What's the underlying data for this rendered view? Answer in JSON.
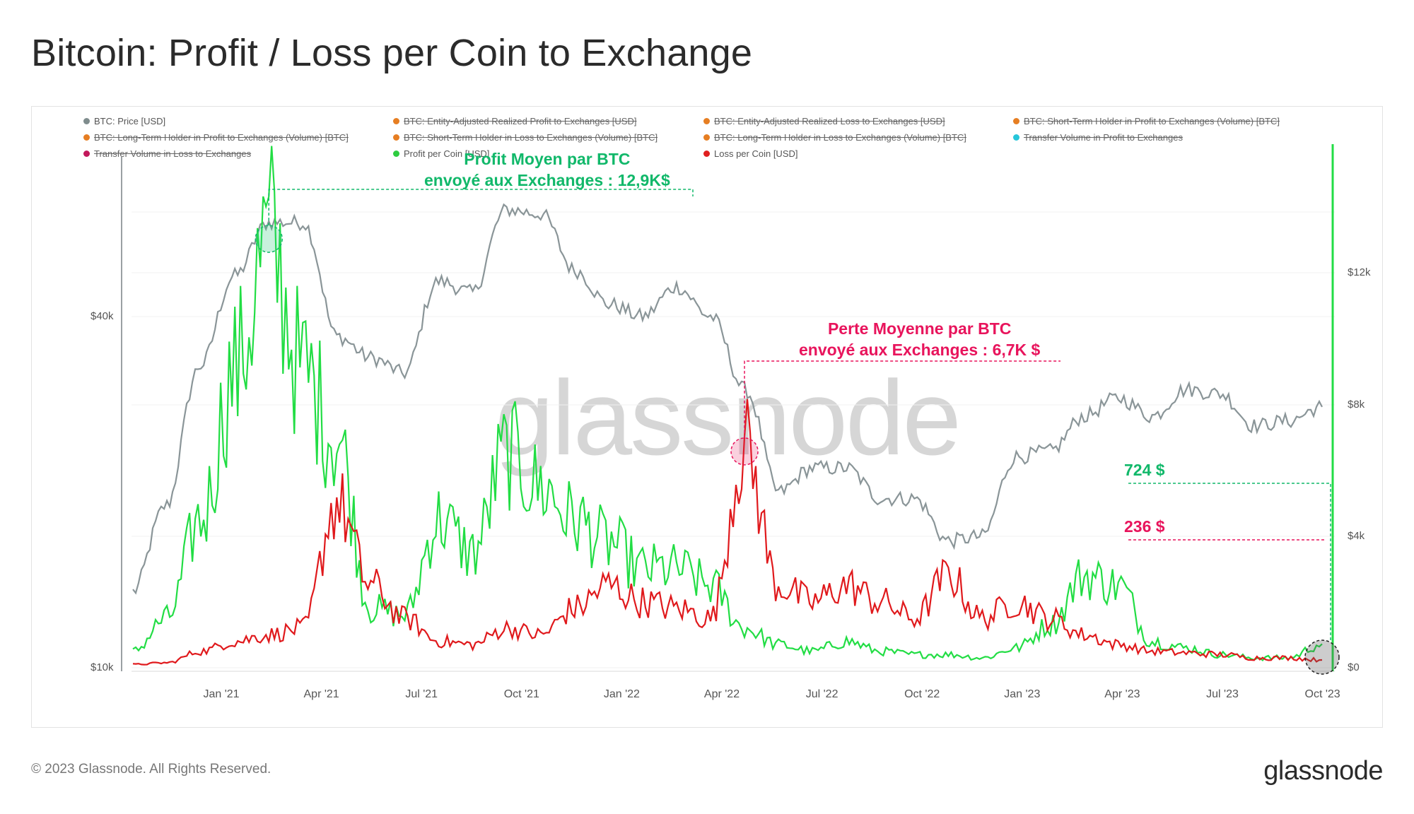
{
  "title": "Bitcoin: Profit / Loss per Coin to Exchange",
  "watermark": "glassnode",
  "footer": "© 2023 Glassnode. All Rights Reserved.",
  "brand": "glassnode",
  "legend": [
    {
      "label": "BTC: Price [USD]",
      "color": "#7f8c8d",
      "active": true
    },
    {
      "label": "BTC: Entity-Adjusted Realized Profit to Exchanges [USD]",
      "color": "#e67e22",
      "active": false
    },
    {
      "label": "BTC: Entity-Adjusted Realized Loss to Exchanges [USD]",
      "color": "#e67e22",
      "active": false
    },
    {
      "label": "BTC: Short-Term Holder in Profit to Exchanges (Volume) [BTC]",
      "color": "#e67e22",
      "active": false
    },
    {
      "label": "BTC: Long-Term Holder in Profit to Exchanges (Volume) [BTC]",
      "color": "#e67e22",
      "active": false
    },
    {
      "label": "BTC: Short-Term Holder in Loss to Exchanges (Volume) [BTC]",
      "color": "#e67e22",
      "active": false
    },
    {
      "label": "BTC: Long-Term Holder in Loss to Exchanges (Volume) [BTC]",
      "color": "#e67e22",
      "active": false
    },
    {
      "label": "Transfer Volume in Profit to Exchanges",
      "color": "#26c6da",
      "active": false
    },
    {
      "label": "Transfer Volume in Loss to Exchanges",
      "color": "#c2185b",
      "active": false
    },
    {
      "label": "Profit per Coin [USD]",
      "color": "#2ecc40",
      "active": true
    },
    {
      "label": "Loss per Coin [USD]",
      "color": "#e02020",
      "active": true
    }
  ],
  "annotations": {
    "profit_avg": "Profit Moyen par BTC\nenvoyé aux Exchanges : 12,9K$",
    "loss_avg": "Perte Moyenne par BTC\nenvoyé aux Exchanges : 6,7K $",
    "profit_last": "724 $",
    "loss_last": "236 $"
  },
  "colors": {
    "price": "#8a9598",
    "profit": "#22dd44",
    "loss": "#e0191c",
    "profit_text": "#11b86a",
    "loss_text": "#e8145c"
  },
  "chart_data": {
    "type": "line",
    "x_ticks": [
      "Jan '21",
      "Apr '21",
      "Jul '21",
      "Oct '21",
      "Jan '22",
      "Apr '22",
      "Jul '22",
      "Oct '22",
      "Jan '23",
      "Apr '23",
      "Jul '23",
      "Oct '23"
    ],
    "y_left": {
      "scale": "log",
      "ticks": [
        "$10k",
        "$40k"
      ],
      "range": [
        10000,
        80000
      ]
    },
    "y_right": {
      "ticks": [
        "$0",
        "$4k",
        "$8k",
        "$12k"
      ],
      "range": [
        0,
        16000
      ]
    },
    "series": [
      {
        "name": "BTC: Price [USD]",
        "axis": "left",
        "dates": [
          "2020-11",
          "2020-12",
          "2021-01",
          "2021-02",
          "2021-03",
          "2021-04",
          "2021-05",
          "2021-06",
          "2021-07",
          "2021-08",
          "2021-09",
          "2021-10",
          "2021-11",
          "2021-12",
          "2022-01",
          "2022-02",
          "2022-03",
          "2022-04",
          "2022-05",
          "2022-06",
          "2022-07",
          "2022-08",
          "2022-09",
          "2022-10",
          "2022-11",
          "2022-12",
          "2023-01",
          "2023-02",
          "2023-03",
          "2023-04",
          "2023-05",
          "2023-06",
          "2023-07",
          "2023-08",
          "2023-09",
          "2023-10"
        ],
        "values": [
          13500,
          19000,
          33000,
          47000,
          58000,
          58000,
          37000,
          34000,
          32000,
          46000,
          44000,
          61000,
          60000,
          48000,
          42000,
          40000,
          45000,
          40000,
          30000,
          20000,
          22000,
          22000,
          19500,
          19500,
          16500,
          16800,
          23000,
          23500,
          27000,
          29000,
          27000,
          30000,
          29500,
          26000,
          26500,
          28000
        ]
      },
      {
        "name": "Profit per Coin [USD]",
        "axis": "right",
        "dates": [
          "2020-11",
          "2020-12",
          "2021-01",
          "2021-02",
          "2021-03",
          "2021-04",
          "2021-05",
          "2021-06",
          "2021-07",
          "2021-08",
          "2021-09",
          "2021-10",
          "2021-11",
          "2021-12",
          "2022-01",
          "2022-02",
          "2022-03",
          "2022-04",
          "2022-05",
          "2022-06",
          "2022-07",
          "2022-08",
          "2022-09",
          "2022-10",
          "2022-11",
          "2022-12",
          "2023-01",
          "2023-02",
          "2023-03",
          "2023-04",
          "2023-05",
          "2023-06",
          "2023-07",
          "2023-08",
          "2023-09",
          "2023-10"
        ],
        "values": [
          500,
          1500,
          4500,
          9000,
          12900,
          9000,
          7000,
          1800,
          1600,
          4500,
          3500,
          6500,
          5500,
          4500,
          3800,
          3000,
          3000,
          2500,
          1200,
          700,
          500,
          800,
          500,
          400,
          400,
          300,
          600,
          1300,
          2800,
          2500,
          800,
          600,
          400,
          300,
          300,
          724
        ]
      },
      {
        "name": "Loss per Coin [USD]",
        "axis": "right",
        "dates": [
          "2020-11",
          "2020-12",
          "2021-01",
          "2021-02",
          "2021-03",
          "2021-04",
          "2021-05",
          "2021-06",
          "2021-07",
          "2021-08",
          "2021-09",
          "2021-10",
          "2021-11",
          "2021-12",
          "2022-01",
          "2022-02",
          "2022-03",
          "2022-04",
          "2022-05",
          "2022-06",
          "2022-07",
          "2022-08",
          "2022-09",
          "2022-10",
          "2022-11",
          "2022-12",
          "2023-01",
          "2023-02",
          "2023-03",
          "2023-04",
          "2023-05",
          "2023-06",
          "2023-07",
          "2023-08",
          "2023-09",
          "2023-10"
        ],
        "values": [
          100,
          150,
          500,
          800,
          1000,
          1200,
          5000,
          2500,
          1500,
          800,
          700,
          1200,
          1000,
          1800,
          2500,
          2000,
          1800,
          1500,
          6700,
          2500,
          2000,
          2500,
          2000,
          1500,
          2800,
          1500,
          2000,
          1500,
          1000,
          700,
          500,
          450,
          400,
          300,
          300,
          236
        ]
      }
    ]
  }
}
